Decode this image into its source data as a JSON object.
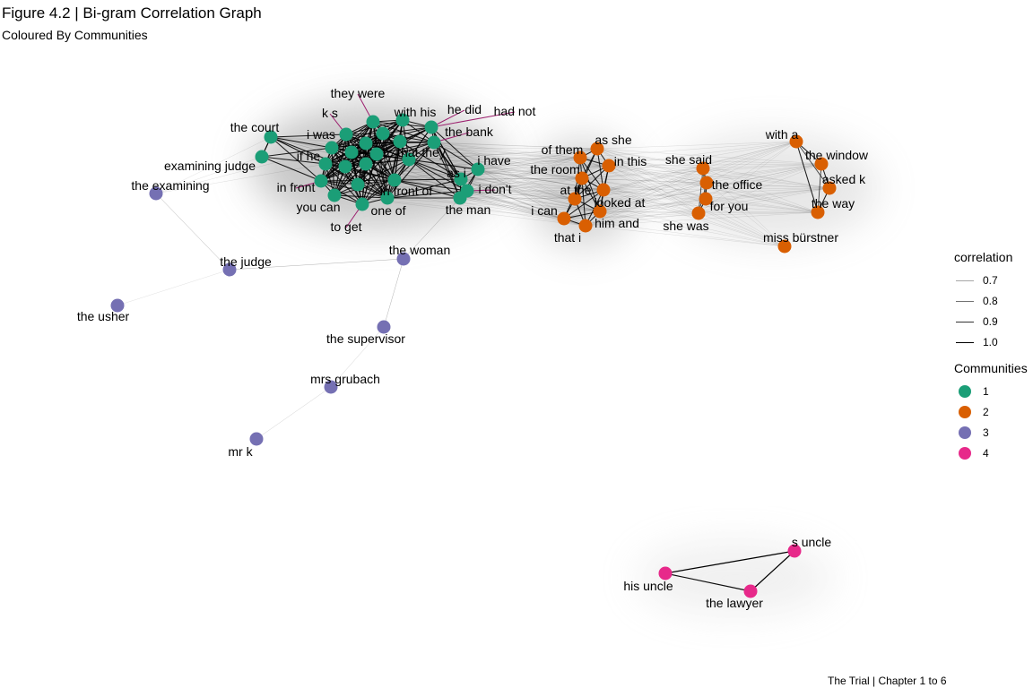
{
  "figure": {
    "title": "Figure 4.2 | Bi-gram Correlation Graph",
    "subtitle": "Coloured By Communities",
    "caption": "The Trial | Chapter 1 to 6"
  },
  "legend": {
    "correlation": {
      "title": "correlation",
      "items": [
        {
          "label": "0.7",
          "value": 0.7
        },
        {
          "label": "0.8",
          "value": 0.8
        },
        {
          "label": "0.9",
          "value": 0.9
        },
        {
          "label": "1.0",
          "value": 1.0
        }
      ]
    },
    "communities": {
      "title": "Communities",
      "items": [
        {
          "label": "1",
          "color": "#1b9e77"
        },
        {
          "label": "2",
          "color": "#d95f02"
        },
        {
          "label": "3",
          "color": "#7570b3"
        },
        {
          "label": "4",
          "color": "#e7298a"
        }
      ]
    }
  },
  "graph": {
    "community_colors": {
      "1": "#1b9e77",
      "2": "#d95f02",
      "3": "#7570b3",
      "4": "#e7298a"
    },
    "nodes": [
      {
        "id": "the court",
        "community": 1
      },
      {
        "id": "examining judge",
        "community": 1
      },
      {
        "id": "they were",
        "community": 1
      },
      {
        "id": "k s",
        "community": 1
      },
      {
        "id": "i was",
        "community": 1
      },
      {
        "id": "with his",
        "community": 1
      },
      {
        "id": "he did",
        "community": 1
      },
      {
        "id": "had not",
        "community": 1
      },
      {
        "id": "the bank",
        "community": 1
      },
      {
        "id": "if he",
        "community": 1
      },
      {
        "id": "that they",
        "community": 1
      },
      {
        "id": "in front",
        "community": 1
      },
      {
        "id": "in front of",
        "community": 1
      },
      {
        "id": "you can",
        "community": 1
      },
      {
        "id": "one of",
        "community": 1
      },
      {
        "id": "to get",
        "community": 1
      },
      {
        "id": "as i",
        "community": 1
      },
      {
        "id": "i have",
        "community": 1
      },
      {
        "id": "i don't",
        "community": 1
      },
      {
        "id": "the man",
        "community": 1
      },
      {
        "id": "of them",
        "community": 2
      },
      {
        "id": "as she",
        "community": 2
      },
      {
        "id": "in this",
        "community": 2
      },
      {
        "id": "the room",
        "community": 2
      },
      {
        "id": "at the",
        "community": 2
      },
      {
        "id": "looked at",
        "community": 2
      },
      {
        "id": "i can",
        "community": 2
      },
      {
        "id": "him and",
        "community": 2
      },
      {
        "id": "that i",
        "community": 2
      },
      {
        "id": "she said",
        "community": 2
      },
      {
        "id": "the office",
        "community": 2
      },
      {
        "id": "for you",
        "community": 2
      },
      {
        "id": "she was",
        "community": 2
      },
      {
        "id": "with a",
        "community": 2
      },
      {
        "id": "the window",
        "community": 2
      },
      {
        "id": "asked k",
        "community": 2
      },
      {
        "id": "the way",
        "community": 2
      },
      {
        "id": "miss bürstner",
        "community": 2
      },
      {
        "id": "the examining",
        "community": 3
      },
      {
        "id": "the judge",
        "community": 3
      },
      {
        "id": "the usher",
        "community": 3
      },
      {
        "id": "the woman",
        "community": 3
      },
      {
        "id": "the supervisor",
        "community": 3
      },
      {
        "id": "mrs grubach",
        "community": 3
      },
      {
        "id": "mr k",
        "community": 3
      },
      {
        "id": "s uncle",
        "community": 4
      },
      {
        "id": "his uncle",
        "community": 4
      },
      {
        "id": "the lawyer",
        "community": 4
      }
    ],
    "edges": [
      {
        "from": "the court",
        "to": "examining judge",
        "correlation": 0.95
      },
      {
        "from": "the examining",
        "to": "the judge",
        "correlation": 0.75
      },
      {
        "from": "the judge",
        "to": "the usher",
        "correlation": 0.7
      },
      {
        "from": "the judge",
        "to": "the woman",
        "correlation": 0.75
      },
      {
        "from": "the woman",
        "to": "the supervisor",
        "correlation": 0.75
      },
      {
        "from": "the woman",
        "to": "the man",
        "correlation": 0.75
      },
      {
        "from": "the supervisor",
        "to": "mrs grubach",
        "correlation": 0.72
      },
      {
        "from": "mrs grubach",
        "to": "mr k",
        "correlation": 0.72
      },
      {
        "from": "his uncle",
        "to": "s uncle",
        "correlation": 1.0
      },
      {
        "from": "his uncle",
        "to": "the lawyer",
        "correlation": 0.98
      },
      {
        "from": "the lawyer",
        "to": "s uncle",
        "correlation": 1.0
      },
      {
        "from": "with a",
        "to": "the window",
        "correlation": 0.95
      },
      {
        "from": "with a",
        "to": "the way",
        "correlation": 0.95
      },
      {
        "from": "the window",
        "to": "asked k",
        "correlation": 0.95
      },
      {
        "from": "asked k",
        "to": "the way",
        "correlation": 0.95
      },
      {
        "from": "with a",
        "to": "asked k",
        "correlation": 0.9
      },
      {
        "from": "the window",
        "to": "the way",
        "correlation": 0.9
      },
      {
        "from": "she said",
        "to": "the office",
        "correlation": 0.95
      },
      {
        "from": "the office",
        "to": "for you",
        "correlation": 0.95
      },
      {
        "from": "for you",
        "to": "she was",
        "correlation": 0.95
      },
      {
        "from": "she said",
        "to": "for you",
        "correlation": 0.9
      },
      {
        "from": "the office",
        "to": "she was",
        "correlation": 0.9
      },
      {
        "from": "she said",
        "to": "she was",
        "correlation": 0.9
      }
    ],
    "dense_clusters": [
      {
        "members": [
          "the court",
          "examining judge",
          "they were",
          "k s",
          "i was",
          "with his",
          "he did",
          "the bank",
          "if he",
          "that they",
          "in front",
          "in front of",
          "you can",
          "one of",
          "to get",
          "as i",
          "i have",
          "i don't",
          "the man"
        ],
        "correlation": 0.95
      },
      {
        "members": [
          "of them",
          "as she",
          "in this",
          "the room",
          "at the",
          "looked at",
          "i can",
          "him and",
          "that i"
        ],
        "correlation": 0.95
      }
    ],
    "bridges": [
      {
        "from": [
          "the court",
          "i was",
          "if he",
          "in front",
          "you can",
          "the bank",
          "that they",
          "in front of",
          "i have",
          "as i",
          "i don't",
          "the man"
        ],
        "to": [
          "of them",
          "the room",
          "at the",
          "i can",
          "that i",
          "looked at",
          "him and",
          "in this",
          "as she"
        ],
        "correlation": 0.7
      },
      {
        "from": [
          "of them",
          "the room",
          "as she",
          "in this",
          "looked at",
          "him and",
          "i can",
          "at the",
          "that i"
        ],
        "to": [
          "she said",
          "the office",
          "for you",
          "she was",
          "with a",
          "the window",
          "asked k",
          "the way",
          "miss bürstner"
        ],
        "correlation": 0.7
      },
      {
        "from": [
          "she said",
          "the office",
          "for you",
          "she was"
        ],
        "to": [
          "with a",
          "the window",
          "asked k",
          "the way",
          "miss bürstner"
        ],
        "correlation": 0.7
      },
      {
        "from": [
          "the court",
          "examining judge",
          "if he",
          "i was"
        ],
        "to": [
          "the examining"
        ],
        "correlation": 0.7
      }
    ]
  }
}
